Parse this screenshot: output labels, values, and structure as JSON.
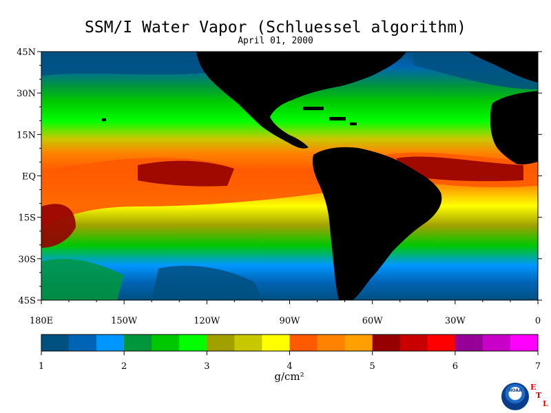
{
  "title": "SSM/I Water Vapor (Schluessel algorithm)",
  "subtitle": "April 01, 2000",
  "map": {
    "lat_labels": [
      "45N",
      "30N",
      "15N",
      "EQ",
      "15S",
      "30S",
      "45S"
    ],
    "lon_labels": [
      "180E",
      "150W",
      "120W",
      "90W",
      "60W",
      "30W",
      "0"
    ],
    "land_color": "#000000",
    "projection": "cylindrical equidistant, 180E to 0, 45S to 45N"
  },
  "colorbar": {
    "colors": [
      "#005080",
      "#0064b4",
      "#0096ff",
      "#00963c",
      "#00c800",
      "#00ff00",
      "#a0a000",
      "#c8c800",
      "#ffff00",
      "#ff5a00",
      "#ff8200",
      "#ffa000",
      "#960000",
      "#c80000",
      "#ff0000",
      "#960096",
      "#c800c8",
      "#ff00ff"
    ],
    "tick_labels": [
      "1",
      "2",
      "3",
      "4",
      "5",
      "6",
      "7"
    ],
    "units": "g/cm²"
  },
  "logo": {
    "name": "NOAA",
    "etl_letters": [
      "E",
      "T",
      "L"
    ]
  }
}
